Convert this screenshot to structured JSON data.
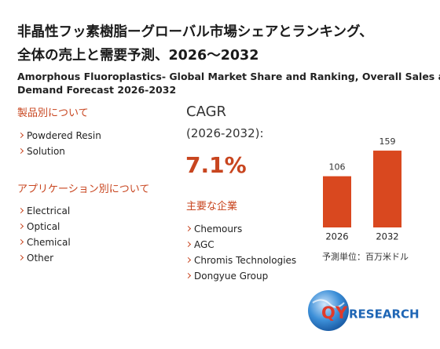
{
  "title": [
    "非晶性フッ素樹脂ーグローバル市場シェアとランキング、",
    "全体の売上と需要予測、2026～2032"
  ],
  "subtitle": [
    "Amorphous Fluoroplastics- Global Market Share and Ranking, Overall Sales and",
    "Demand Forecast 2026-2032"
  ],
  "by_product": {
    "heading": "製品別について",
    "items": [
      "Powdered Resin",
      "Solution"
    ]
  },
  "by_application": {
    "heading": "アプリケーション別について",
    "items": [
      "Electrical",
      "Optical",
      "Chemical",
      "Other"
    ]
  },
  "cagr": {
    "label": "CAGR",
    "period": "(2026-2032):",
    "value": "7.1%"
  },
  "companies": {
    "heading": "主要な企業",
    "items": [
      "Chemours",
      "AGC",
      "Chromis Technologies",
      "Dongyue Group"
    ]
  },
  "chart_data": {
    "type": "bar",
    "categories": [
      "2026",
      "2032"
    ],
    "values": [
      106,
      159
    ],
    "color": "#d9481f",
    "note": "予測単位：百万米ドル"
  },
  "logo": {
    "mark": "QY",
    "name": "RESEARCH"
  }
}
